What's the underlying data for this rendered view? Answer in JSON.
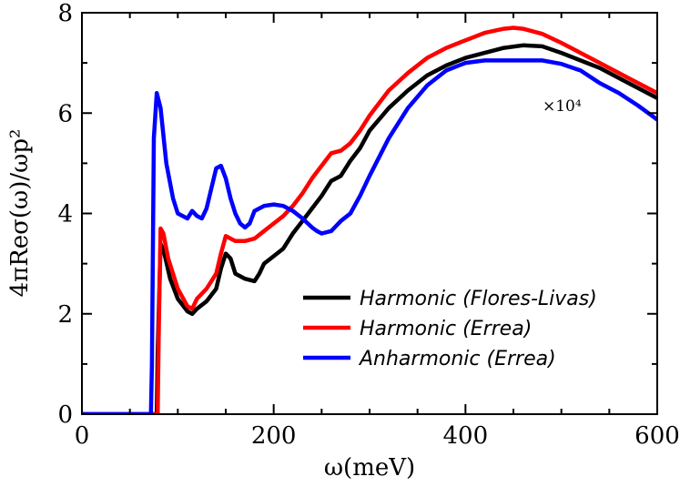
{
  "chart_data": {
    "type": "line",
    "xlabel": "ω(meV)",
    "ylabel": "4πReσ(ω)/ωp²",
    "xlim": [
      0,
      600
    ],
    "ylim": [
      0,
      8
    ],
    "xticks": [
      0,
      200,
      400,
      600
    ],
    "yticks": [
      0,
      2,
      4,
      6,
      8
    ],
    "annotation": "×10⁴",
    "legend_position": "bottom-right",
    "grid": false,
    "series": [
      {
        "name": "Harmonic (Flores-Livas)",
        "color": "#000000",
        "x": [
          0,
          78,
          79,
          82,
          86,
          92,
          100,
          110,
          115,
          120,
          130,
          140,
          145,
          150,
          155,
          160,
          170,
          180,
          185,
          190,
          200,
          210,
          220,
          230,
          240,
          250,
          260,
          270,
          280,
          290,
          300,
          320,
          340,
          360,
          380,
          400,
          420,
          440,
          460,
          480,
          500,
          520,
          540,
          560,
          580,
          600
        ],
        "y": [
          0,
          0,
          1.2,
          3.4,
          3.2,
          2.7,
          2.3,
          2.05,
          2.0,
          2.1,
          2.25,
          2.5,
          2.9,
          3.2,
          3.1,
          2.8,
          2.7,
          2.65,
          2.8,
          3.0,
          3.15,
          3.3,
          3.6,
          3.85,
          4.1,
          4.35,
          4.65,
          4.75,
          5.05,
          5.3,
          5.65,
          6.1,
          6.45,
          6.75,
          6.95,
          7.1,
          7.2,
          7.3,
          7.35,
          7.33,
          7.2,
          7.05,
          6.9,
          6.7,
          6.5,
          6.3
        ]
      },
      {
        "name": "Harmonic (Errea)",
        "color": "#ff0000",
        "x": [
          0,
          79,
          80,
          82,
          85,
          90,
          100,
          110,
          115,
          120,
          130,
          140,
          145,
          150,
          155,
          160,
          170,
          180,
          190,
          200,
          210,
          220,
          230,
          240,
          250,
          260,
          270,
          280,
          290,
          300,
          320,
          340,
          360,
          380,
          400,
          420,
          440,
          450,
          460,
          480,
          500,
          520,
          540,
          560,
          580,
          600
        ],
        "y": [
          0,
          0,
          1.5,
          3.7,
          3.6,
          3.1,
          2.5,
          2.15,
          2.1,
          2.3,
          2.5,
          2.8,
          3.2,
          3.55,
          3.5,
          3.45,
          3.45,
          3.5,
          3.65,
          3.8,
          3.95,
          4.15,
          4.4,
          4.7,
          4.95,
          5.2,
          5.25,
          5.4,
          5.65,
          5.95,
          6.45,
          6.8,
          7.1,
          7.3,
          7.45,
          7.6,
          7.68,
          7.7,
          7.68,
          7.58,
          7.4,
          7.2,
          7.0,
          6.8,
          6.6,
          6.4
        ]
      },
      {
        "name": "Anharmonic (Errea)",
        "color": "#0000ff",
        "x": [
          0,
          72,
          73,
          75,
          78,
          82,
          88,
          95,
          100,
          105,
          110,
          115,
          120,
          125,
          130,
          135,
          140,
          145,
          150,
          155,
          160,
          165,
          170,
          175,
          180,
          190,
          200,
          210,
          220,
          230,
          240,
          245,
          250,
          260,
          270,
          280,
          290,
          300,
          320,
          340,
          360,
          380,
          400,
          420,
          440,
          460,
          480,
          500,
          520,
          540,
          560,
          580,
          600
        ],
        "y": [
          0,
          0,
          1.0,
          5.5,
          6.4,
          6.1,
          5.0,
          4.3,
          4.0,
          3.95,
          3.9,
          4.05,
          3.95,
          3.9,
          4.1,
          4.5,
          4.9,
          4.95,
          4.7,
          4.3,
          4.0,
          3.8,
          3.72,
          3.8,
          4.05,
          4.15,
          4.18,
          4.15,
          4.05,
          3.9,
          3.72,
          3.65,
          3.6,
          3.65,
          3.85,
          4.0,
          4.35,
          4.75,
          5.5,
          6.1,
          6.55,
          6.85,
          7.0,
          7.05,
          7.05,
          7.05,
          7.05,
          6.98,
          6.85,
          6.6,
          6.4,
          6.15,
          5.87
        ]
      }
    ]
  }
}
